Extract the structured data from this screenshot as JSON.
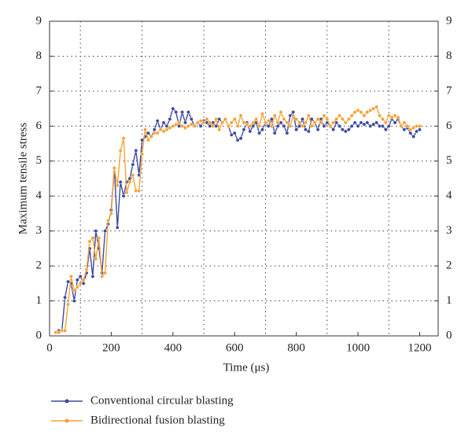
{
  "chart_data": {
    "type": "line",
    "xlabel": "Time (μs)",
    "ylabel": "Maximum tensile stress",
    "x": [
      20,
      30,
      40,
      50,
      60,
      70,
      80,
      90,
      100,
      110,
      120,
      130,
      140,
      150,
      160,
      170,
      180,
      190,
      200,
      210,
      220,
      230,
      240,
      250,
      260,
      270,
      280,
      290,
      300,
      310,
      320,
      330,
      340,
      350,
      360,
      370,
      380,
      390,
      400,
      410,
      420,
      430,
      440,
      450,
      460,
      470,
      480,
      490,
      500,
      510,
      520,
      530,
      540,
      550,
      560,
      570,
      580,
      590,
      600,
      610,
      620,
      630,
      640,
      650,
      660,
      670,
      680,
      690,
      700,
      710,
      720,
      730,
      740,
      750,
      760,
      770,
      780,
      790,
      800,
      810,
      820,
      830,
      840,
      850,
      860,
      870,
      880,
      890,
      900,
      910,
      920,
      930,
      940,
      950,
      960,
      970,
      980,
      990,
      1000,
      1010,
      1020,
      1030,
      1040,
      1050,
      1060,
      1070,
      1080,
      1090,
      1100,
      1110,
      1120,
      1130,
      1140,
      1150,
      1160,
      1170,
      1180,
      1190,
      1200
    ],
    "series": [
      {
        "name": "Conventional circular blasting",
        "color": "#3d4aa0",
        "values": [
          0.1,
          0.15,
          0.15,
          1.1,
          1.55,
          1.5,
          1.0,
          1.6,
          1.7,
          1.5,
          1.8,
          2.5,
          1.7,
          3.0,
          2.5,
          1.8,
          3.0,
          3.2,
          3.6,
          4.8,
          3.1,
          4.4,
          4.0,
          4.4,
          4.5,
          4.9,
          5.3,
          4.6,
          5.6,
          5.7,
          5.8,
          5.7,
          5.9,
          6.15,
          5.9,
          6.1,
          6.0,
          6.2,
          6.5,
          6.4,
          6.0,
          6.4,
          6.1,
          6.4,
          6.2,
          6.0,
          6.1,
          6.0,
          6.15,
          6.1,
          6.0,
          6.1,
          6.0,
          6.2,
          6.1,
          6.2,
          6.0,
          5.75,
          5.8,
          5.6,
          5.65,
          5.9,
          6.1,
          5.85,
          6.0,
          6.1,
          5.8,
          5.9,
          6.1,
          6.0,
          6.2,
          5.8,
          6.0,
          6.1,
          6.0,
          5.8,
          6.3,
          6.4,
          5.9,
          6.0,
          6.2,
          5.9,
          5.85,
          6.2,
          6.1,
          5.9,
          6.2,
          6.0,
          6.1,
          6.0,
          5.9,
          6.1,
          6.0,
          5.9,
          5.85,
          5.9,
          6.0,
          6.1,
          6.0,
          6.1,
          6.05,
          6.1,
          6.0,
          6.05,
          6.1,
          6.0,
          6.0,
          5.9,
          6.0,
          6.2,
          6.1,
          6.2,
          6.0,
          5.9,
          5.95,
          5.8,
          5.7,
          5.85,
          5.9
        ]
      },
      {
        "name": "Bidirectional fusion blasting",
        "color": "#f5a234",
        "values": [
          0.1,
          0.1,
          0.15,
          0.15,
          0.9,
          1.7,
          1.3,
          1.4,
          1.5,
          1.6,
          1.9,
          2.7,
          2.8,
          2.2,
          2.8,
          1.7,
          1.8,
          3.3,
          3.5,
          4.8,
          4.3,
          5.3,
          5.65,
          4.1,
          4.4,
          4.6,
          4.15,
          4.15,
          5.2,
          5.9,
          5.6,
          5.7,
          5.8,
          5.8,
          5.9,
          5.85,
          5.9,
          5.95,
          6.0,
          6.05,
          6.1,
          6.0,
          5.95,
          6.0,
          6.05,
          6.0,
          6.1,
          6.15,
          6.1,
          6.2,
          6.1,
          6.0,
          6.2,
          5.9,
          6.1,
          6.2,
          6.0,
          6.1,
          6.2,
          6.0,
          6.3,
          6.1,
          6.05,
          6.0,
          6.1,
          6.2,
          6.0,
          6.35,
          6.1,
          6.15,
          6.0,
          6.3,
          6.1,
          6.4,
          6.2,
          6.1,
          6.0,
          6.3,
          6.2,
          6.1,
          6.0,
          6.1,
          6.3,
          6.0,
          6.1,
          6.2,
          6.1,
          6.3,
          6.2,
          6.0,
          6.1,
          6.2,
          6.3,
          6.2,
          6.1,
          6.2,
          6.3,
          6.4,
          6.45,
          6.4,
          6.3,
          6.4,
          6.45,
          6.5,
          6.55,
          6.3,
          6.2,
          6.1,
          6.3,
          6.25,
          6.3,
          6.25,
          6.0,
          6.1,
          6.0,
          5.9,
          5.95,
          6.0,
          6.0
        ]
      }
    ],
    "xlim": [
      0,
      1260
    ],
    "xticks": [
      0,
      200,
      400,
      600,
      800,
      1000,
      1200
    ],
    "xgrid": [
      100,
      300,
      500,
      700,
      900,
      1100
    ],
    "ylim": [
      0,
      9
    ],
    "yticks": [
      0,
      1,
      2,
      3,
      4,
      5,
      6,
      7,
      8,
      9
    ],
    "y2lim": [
      0,
      9
    ],
    "y2ticks": [
      0,
      1,
      2,
      3,
      4,
      5,
      6,
      7,
      8,
      9
    ],
    "grid": true,
    "legend": "bottom"
  }
}
